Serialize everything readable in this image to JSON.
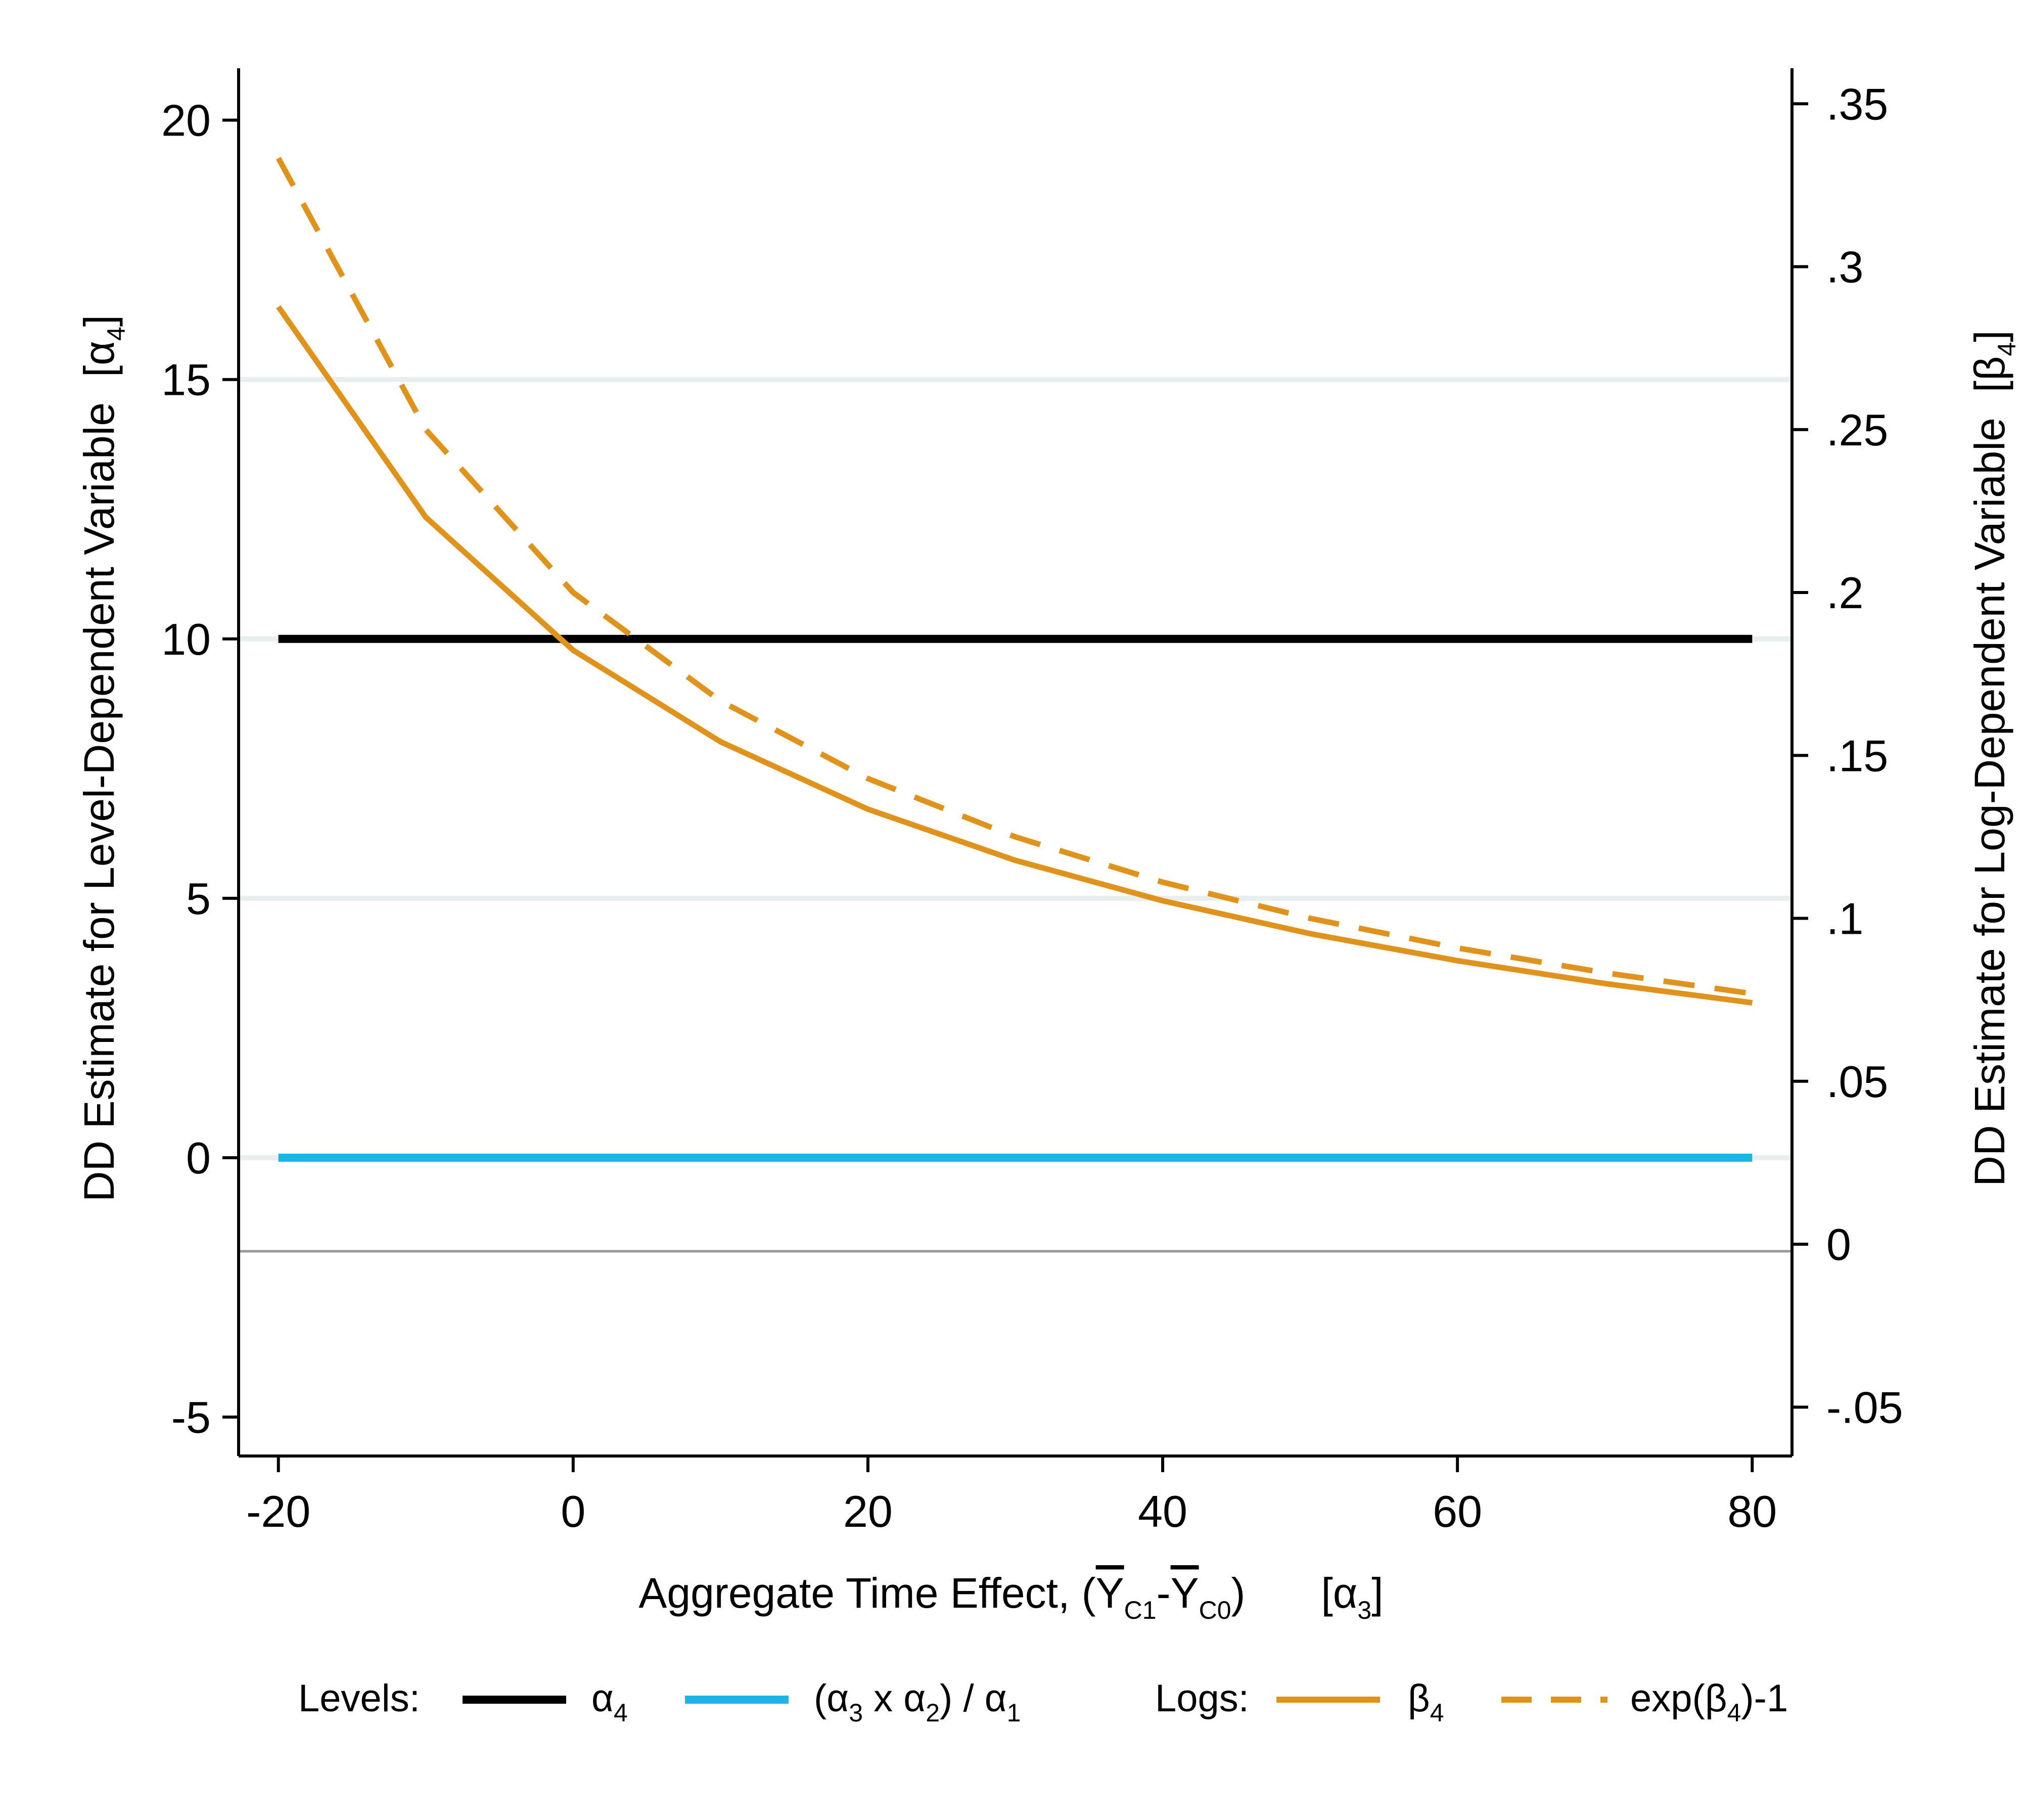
{
  "chart_data": {
    "type": "line",
    "title": "",
    "xlabel": {
      "prefix": "Aggregate Time Effect, (",
      "bar1": "Y",
      "sub1": "C1",
      "dash": "-",
      "bar2": "Y",
      "sub2": "C0",
      "close": ")",
      "bracket_open": "[α",
      "bracket_sub": "3",
      "bracket_close": "]"
    },
    "ylabel_left": {
      "text": "DD Estimate for Level-Dependent Variable",
      "bracket_open": "[α",
      "bracket_sub": "4",
      "bracket_close": "]"
    },
    "ylabel_right": {
      "text": "DD Estimate for Log-Dependent Variable",
      "bracket_open": "[β",
      "bracket_sub": "4",
      "bracket_close": "]"
    },
    "x": [
      -20,
      -10,
      0,
      10,
      20,
      30,
      40,
      50,
      60,
      70,
      80
    ],
    "xlim": [
      -22.7,
      82.7
    ],
    "ylim_left": [
      -5.75,
      21.0
    ],
    "ylim_right": [
      -0.065,
      0.3609
    ],
    "x_ticks": [
      -20,
      0,
      20,
      40,
      60,
      80
    ],
    "x_tick_labels": [
      "-20",
      "0",
      "20",
      "40",
      "60",
      "80"
    ],
    "y_left_ticks": [
      -5,
      0,
      5,
      10,
      15,
      20
    ],
    "y_left_tick_labels": [
      "-5",
      "0",
      "5",
      "10",
      "15",
      "20"
    ],
    "y_right_ticks": [
      -0.05,
      0,
      0.05,
      0.1,
      0.15,
      0.2,
      0.25,
      0.3,
      0.35
    ],
    "y_right_tick_labels": [
      "-.05",
      "0",
      ".05",
      ".1",
      ".15",
      ".2",
      ".25",
      ".3",
      ".35"
    ],
    "gridlines_left": [
      0,
      5,
      10,
      15
    ],
    "grid": true,
    "series": [
      {
        "name": "α4",
        "axis": "left",
        "color": "#000000",
        "dash": "solid",
        "values": [
          10,
          10,
          10,
          10,
          10,
          10,
          10,
          10,
          10,
          10,
          10
        ]
      },
      {
        "name": "(α3 x α2) / α1",
        "axis": "left",
        "color": "#1ab6e8",
        "dash": "solid",
        "values": [
          0,
          0,
          0,
          0,
          0,
          0,
          0,
          0,
          0,
          0,
          0
        ]
      },
      {
        "name": "β4",
        "axis": "right",
        "color": "#e09318",
        "dash": "solid",
        "values": [
          0.2877,
          0.2231,
          0.1823,
          0.1542,
          0.1335,
          0.1178,
          0.1054,
          0.0953,
          0.087,
          0.08,
          0.0741
        ]
      },
      {
        "name": "exp(β4)-1",
        "axis": "right",
        "color": "#e09318",
        "dash": "dashed",
        "values": [
          0.3333,
          0.25,
          0.2,
          0.1667,
          0.1429,
          0.125,
          0.1111,
          0.1,
          0.0909,
          0.0833,
          0.0769
        ]
      }
    ],
    "legend": {
      "position": "bottom",
      "levels_label": "Levels:",
      "logs_label": "Logs:",
      "items": [
        {
          "main": "α",
          "sub": "4"
        },
        {
          "pre": "(α",
          "sub1": "3",
          "mid1": " x α",
          "sub2": "2",
          "mid2": ") / α",
          "sub3": "1"
        },
        {
          "main": "β",
          "sub": "4"
        },
        {
          "pre": "exp(β",
          "sub": "4",
          "post": ")-1"
        }
      ]
    }
  }
}
